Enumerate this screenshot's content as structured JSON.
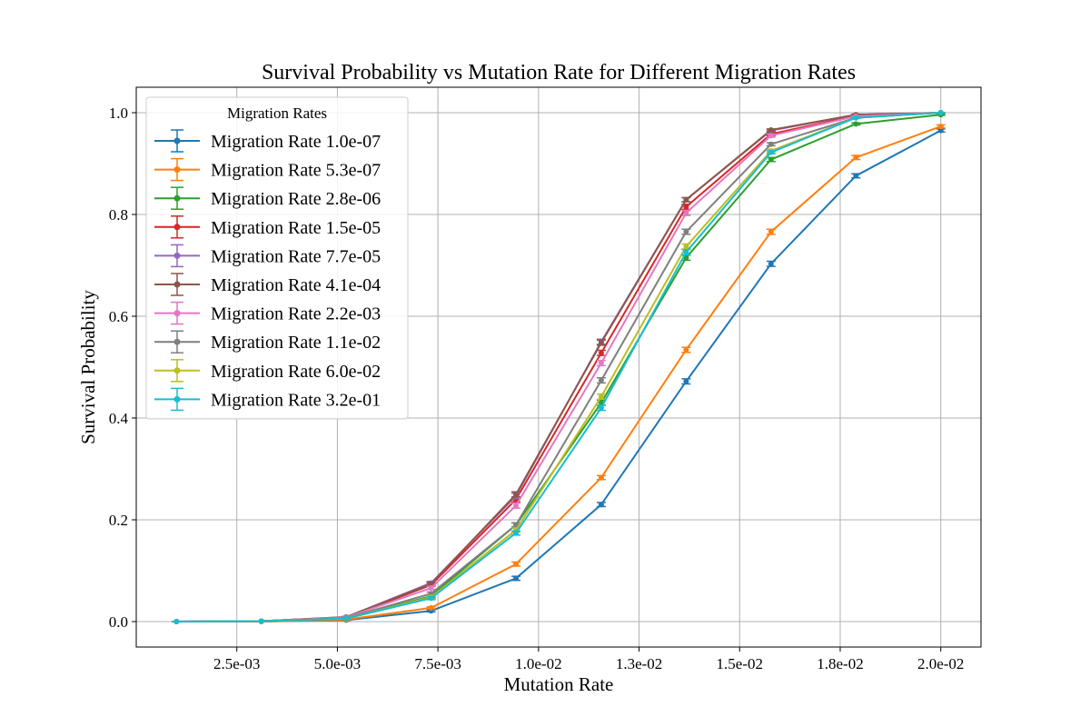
{
  "chart_data": {
    "type": "line",
    "title": "Survival Probability vs Mutation Rate for Different Migration Rates",
    "xlabel": "Mutation Rate",
    "ylabel": "Survival Probability",
    "xlim": [
      0.0,
      0.021
    ],
    "ylim": [
      -0.05,
      1.05
    ],
    "xticks": [
      0.0025,
      0.005,
      0.0075,
      0.01,
      0.0125,
      0.015,
      0.0175,
      0.02
    ],
    "xtick_labels": [
      "2.5e-03",
      "5.0e-03",
      "7.5e-03",
      "1.0e-02",
      "1.3e-02",
      "1.5e-02",
      "1.8e-02",
      "2.0e-02"
    ],
    "yticks": [
      0.0,
      0.2,
      0.4,
      0.6,
      0.8,
      1.0
    ],
    "ytick_labels": [
      "0.0",
      "0.2",
      "0.4",
      "0.6",
      "0.8",
      "1.0"
    ],
    "grid": true,
    "legend": {
      "title": "Migration Rates",
      "placement": "upper-left"
    },
    "x": [
      0.001,
      0.00311,
      0.00522,
      0.00733,
      0.00944,
      0.01156,
      0.01367,
      0.01578,
      0.01789,
      0.02
    ],
    "series": [
      {
        "name": "Migration Rate 1.0e-07",
        "color": "#1f77b4",
        "values": [
          0.0,
          0.0,
          0.003,
          0.021,
          0.085,
          0.23,
          0.472,
          0.703,
          0.876,
          0.965
        ],
        "errors": [
          0.0,
          0.0,
          0.001,
          0.002,
          0.004,
          0.004,
          0.005,
          0.005,
          0.004,
          0.003
        ]
      },
      {
        "name": "Migration Rate 5.3e-07",
        "color": "#ff7f0e",
        "values": [
          0.0,
          0.0,
          0.004,
          0.027,
          0.113,
          0.283,
          0.534,
          0.766,
          0.912,
          0.973
        ],
        "errors": [
          0.0,
          0.0,
          0.001,
          0.002,
          0.004,
          0.004,
          0.005,
          0.005,
          0.004,
          0.003
        ]
      },
      {
        "name": "Migration Rate 2.8e-06",
        "color": "#2ca02c",
        "values": [
          0.0,
          0.001,
          0.006,
          0.05,
          0.19,
          0.43,
          0.715,
          0.908,
          0.978,
          0.996
        ],
        "errors": [
          0.0,
          0.0,
          0.001,
          0.003,
          0.004,
          0.005,
          0.005,
          0.004,
          0.002,
          0.001
        ]
      },
      {
        "name": "Migration Rate 1.5e-05",
        "color": "#d62728",
        "values": [
          0.0,
          0.001,
          0.008,
          0.072,
          0.24,
          0.528,
          0.815,
          0.958,
          0.994,
          1.0
        ],
        "errors": [
          0.0,
          0.0,
          0.001,
          0.003,
          0.005,
          0.005,
          0.005,
          0.003,
          0.001,
          0.0
        ]
      },
      {
        "name": "Migration Rate 7.7e-05",
        "color": "#9467bd",
        "values": [
          0.0,
          0.001,
          0.009,
          0.076,
          0.247,
          0.55,
          0.829,
          0.965,
          0.996,
          1.0
        ],
        "errors": [
          0.0,
          0.0,
          0.001,
          0.003,
          0.005,
          0.005,
          0.004,
          0.002,
          0.001,
          0.0
        ]
      },
      {
        "name": "Migration Rate 4.1e-04",
        "color": "#8c564b",
        "values": [
          0.0,
          0.001,
          0.009,
          0.074,
          0.25,
          0.548,
          0.829,
          0.966,
          0.996,
          1.0
        ],
        "errors": [
          0.0,
          0.0,
          0.001,
          0.003,
          0.005,
          0.005,
          0.004,
          0.002,
          0.001,
          0.0
        ]
      },
      {
        "name": "Migration Rate 2.2e-03",
        "color": "#e377c2",
        "values": [
          0.0,
          0.001,
          0.008,
          0.066,
          0.228,
          0.508,
          0.803,
          0.955,
          0.993,
          1.0
        ],
        "errors": [
          0.0,
          0.0,
          0.001,
          0.003,
          0.005,
          0.005,
          0.005,
          0.003,
          0.001,
          0.0
        ]
      },
      {
        "name": "Migration Rate 1.1e-02",
        "color": "#7f7f7f",
        "values": [
          0.0,
          0.001,
          0.007,
          0.055,
          0.19,
          0.474,
          0.766,
          0.938,
          0.99,
          1.0
        ],
        "errors": [
          0.0,
          0.0,
          0.001,
          0.003,
          0.004,
          0.005,
          0.005,
          0.003,
          0.001,
          0.0
        ]
      },
      {
        "name": "Migration Rate 6.0e-02",
        "color": "#bcbd22",
        "values": [
          0.0,
          0.001,
          0.006,
          0.048,
          0.18,
          0.442,
          0.737,
          0.925,
          0.99,
          1.0
        ],
        "errors": [
          0.0,
          0.0,
          0.001,
          0.003,
          0.004,
          0.005,
          0.005,
          0.003,
          0.001,
          0.0
        ]
      },
      {
        "name": "Migration Rate 3.2e-01",
        "color": "#17becf",
        "values": [
          0.0,
          0.001,
          0.006,
          0.046,
          0.174,
          0.42,
          0.726,
          0.922,
          0.99,
          1.0
        ],
        "errors": [
          0.0,
          0.0,
          0.001,
          0.003,
          0.004,
          0.005,
          0.005,
          0.003,
          0.001,
          0.0
        ]
      }
    ]
  }
}
